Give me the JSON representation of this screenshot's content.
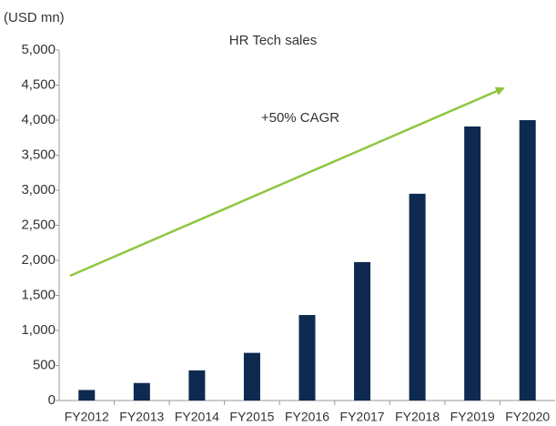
{
  "chart_data": {
    "type": "bar",
    "title": "HR Tech sales",
    "y_label": "(USD mn)",
    "annotation": "+50% CAGR",
    "categories": [
      "FY2012",
      "FY2013",
      "FY2014",
      "FY2015",
      "FY2016",
      "FY2017",
      "FY2018",
      "FY2019",
      "FY2020"
    ],
    "values": [
      150,
      250,
      430,
      680,
      1220,
      1975,
      2950,
      3910,
      4000
    ],
    "color": "#0e2a50",
    "ylim": [
      0,
      5000
    ],
    "yticks": [
      0,
      500,
      {
        "value": 1000,
        "label": "1,000"
      },
      {
        "value": 1500,
        "label": "1,500"
      },
      {
        "value": 2000,
        "label": "2,000"
      },
      {
        "value": 2500,
        "label": "2,500"
      },
      {
        "value": 3000,
        "label": "3,000"
      },
      {
        "value": 3500,
        "label": "3,500"
      },
      {
        "value": 4000,
        "label": "4,000"
      },
      {
        "value": 4500,
        "label": "4,500"
      },
      {
        "value": 5000,
        "label": "5,000"
      }
    ],
    "grid": false
  }
}
